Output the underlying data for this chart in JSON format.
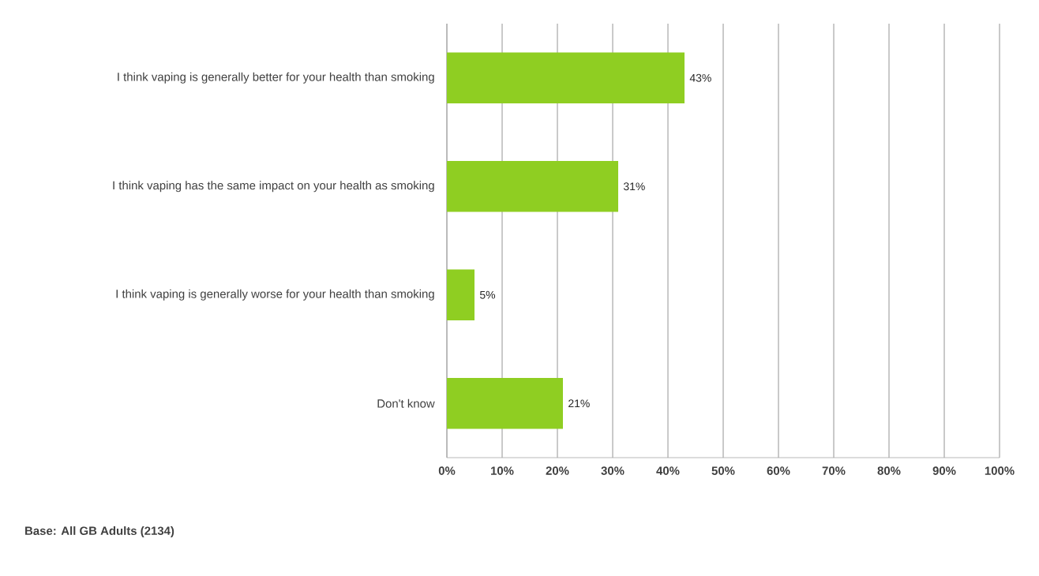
{
  "chart_data": {
    "type": "bar",
    "orientation": "horizontal",
    "categories": [
      "I think vaping is generally better for your health than smoking",
      "I think vaping has the same impact on your health as smoking",
      "I think vaping is generally worse for your health than smoking",
      "Don't know"
    ],
    "values": [
      43,
      31,
      5,
      21
    ],
    "value_labels": [
      "43%",
      "31%",
      "5%",
      "21%"
    ],
    "color": "#8fce22",
    "xlim": [
      0,
      100
    ],
    "xticks": [
      {
        "value": 0,
        "label": "0%"
      },
      {
        "value": 10,
        "label": "10%"
      },
      {
        "value": 20,
        "label": "20%"
      },
      {
        "value": 30,
        "label": "30%"
      },
      {
        "value": 40,
        "label": "40%"
      },
      {
        "value": 50,
        "label": "50%"
      },
      {
        "value": 60,
        "label": "60%"
      },
      {
        "value": 70,
        "label": "70%"
      },
      {
        "value": 80,
        "label": "80%"
      },
      {
        "value": 90,
        "label": "90%"
      },
      {
        "value": 100,
        "label": "100%"
      }
    ],
    "grid": "x",
    "annotations": [
      "Base: All GB Adults (2134)"
    ]
  }
}
